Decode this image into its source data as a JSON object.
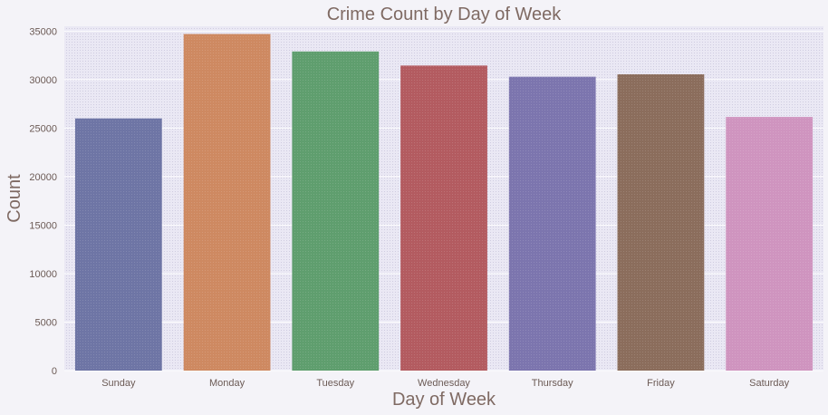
{
  "chart_data": {
    "type": "bar",
    "title": "Crime Count by Day of Week",
    "xlabel": "Day of Week",
    "ylabel": "Count",
    "categories": [
      "Sunday",
      "Monday",
      "Tuesday",
      "Wednesday",
      "Thursday",
      "Friday",
      "Saturday"
    ],
    "values": [
      26000,
      34700,
      32900,
      31450,
      30300,
      30550,
      26150
    ],
    "colors": [
      "#6e75a5",
      "#ce8961",
      "#5f9e6e",
      "#b35b60",
      "#7c75ae",
      "#8b6d5c",
      "#cf94bf"
    ],
    "ylim": [
      0,
      35500
    ],
    "yticks": [
      0,
      5000,
      10000,
      15000,
      20000,
      25000,
      30000,
      35000
    ],
    "grid": true,
    "legend": "none"
  }
}
